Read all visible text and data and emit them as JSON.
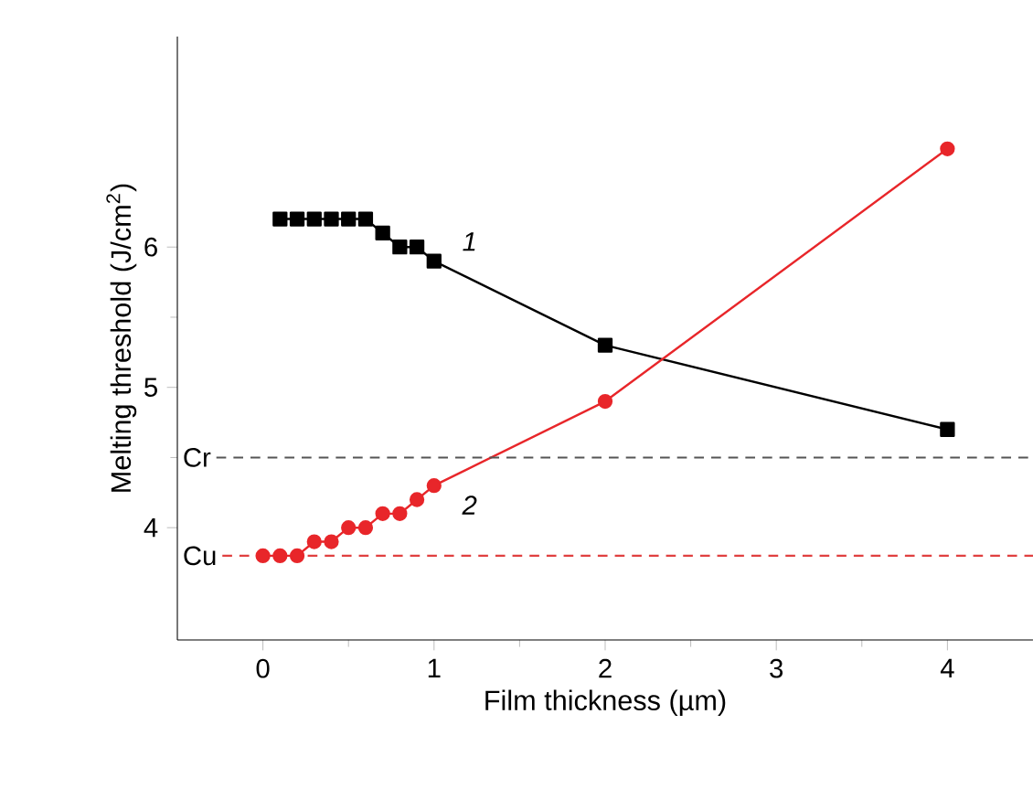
{
  "chart_data": {
    "type": "line",
    "xlabel": "Film thickness (µm)",
    "ylabel": "Melting threshold (J/cm$^{2}$)",
    "xlim": [
      -0.5,
      4.5
    ],
    "ylim": [
      3.2,
      7.5
    ],
    "xticks": [
      0,
      1,
      2,
      3,
      4
    ],
    "yticks": [
      4,
      5,
      6
    ],
    "grid": false,
    "series": [
      {
        "name": "1",
        "color": "#000000",
        "marker": "square",
        "x": [
          0.1,
          0.2,
          0.3,
          0.4,
          0.5,
          0.6,
          0.7,
          0.8,
          0.9,
          1.0,
          2,
          4
        ],
        "values": [
          6.2,
          6.2,
          6.2,
          6.2,
          6.2,
          6.2,
          6.1,
          6.0,
          6.0,
          5.9,
          5.3,
          4.7
        ]
      },
      {
        "name": "2",
        "color": "#e8262a",
        "marker": "circle",
        "x": [
          0,
          0.1,
          0.2,
          0.3,
          0.4,
          0.5,
          0.6,
          0.7,
          0.8,
          0.9,
          1.0,
          2,
          4
        ],
        "values": [
          3.8,
          3.8,
          3.8,
          3.9,
          3.9,
          4.0,
          4.0,
          4.1,
          4.1,
          4.2,
          4.3,
          4.9,
          6.7
        ]
      }
    ],
    "ref_lines": [
      {
        "axis": "y",
        "value": 4.5,
        "label": "Cr",
        "color": "#555555",
        "line_style": "dashed"
      },
      {
        "axis": "y",
        "value": 3.8,
        "label": "Cu",
        "color": "#e04040",
        "line_style": "dashed"
      }
    ]
  }
}
